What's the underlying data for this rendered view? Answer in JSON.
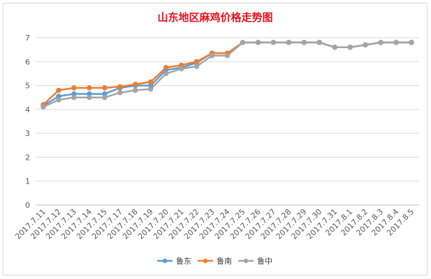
{
  "chart_data": {
    "type": "line",
    "title": "山东地区麻鸡价格走势图",
    "xlabel": "",
    "ylabel": "",
    "ylim": [
      0,
      7
    ],
    "yticks": [
      0,
      1,
      2,
      3,
      4,
      5,
      6,
      7
    ],
    "grid": true,
    "legend_position": "bottom",
    "categories": [
      "2017.7.11",
      "2017.7.12",
      "2017.7.13",
      "2017.7.14",
      "2017.7.15",
      "2017.7.17",
      "2017.7.18",
      "2017.7.19",
      "2017.7.20",
      "2017.7.21",
      "2017.7.22",
      "2017.7.23",
      "2017.7.24",
      "2017.7.25",
      "2017.7.26",
      "2017.7.27",
      "2017.7.28",
      "2017.7.29",
      "2017.7.30",
      "2017.7.31",
      "2017.8.1",
      "2017.8.2",
      "2017.8.3",
      "2017.8.4",
      "2017.8.5"
    ],
    "series": [
      {
        "name": "鲁东",
        "color": "#5b9bd5",
        "values": [
          4.15,
          4.55,
          4.65,
          4.65,
          4.65,
          4.9,
          5.0,
          5.0,
          5.65,
          5.75,
          5.95,
          6.35,
          6.35,
          6.8,
          6.8,
          6.8,
          6.8,
          6.8,
          6.8,
          6.6,
          6.6,
          6.7,
          6.8,
          6.8,
          6.8
        ]
      },
      {
        "name": "鲁南",
        "color": "#ed7d31",
        "values": [
          4.2,
          4.8,
          4.9,
          4.9,
          4.9,
          4.95,
          5.05,
          5.15,
          5.75,
          5.85,
          6.0,
          6.35,
          6.35,
          6.8,
          6.8,
          6.8,
          6.8,
          6.8,
          6.8,
          6.6,
          6.6,
          6.7,
          6.8,
          6.8,
          6.8
        ]
      },
      {
        "name": "鲁中",
        "color": "#a5a5a5",
        "values": [
          4.1,
          4.4,
          4.5,
          4.5,
          4.5,
          4.7,
          4.8,
          4.85,
          5.5,
          5.7,
          5.8,
          6.25,
          6.25,
          6.8,
          6.8,
          6.8,
          6.8,
          6.8,
          6.8,
          6.6,
          6.6,
          6.7,
          6.8,
          6.8,
          6.8
        ]
      }
    ]
  }
}
